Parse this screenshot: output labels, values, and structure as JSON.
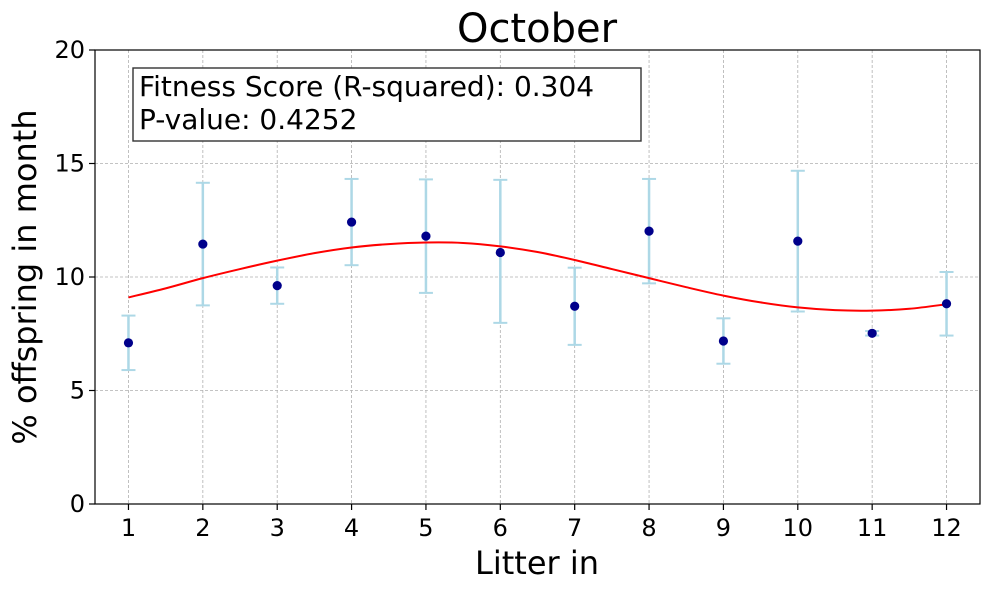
{
  "chart_data": {
    "type": "scatter",
    "title": "October",
    "xlabel": "Litter in",
    "ylabel": "% offspring in month",
    "xlim": [
      0.55,
      12.45
    ],
    "ylim": [
      0,
      20
    ],
    "x_ticks": [
      1,
      2,
      3,
      4,
      5,
      6,
      7,
      8,
      9,
      10,
      11,
      12
    ],
    "y_ticks": [
      0,
      5,
      10,
      15,
      20
    ],
    "grid": true,
    "annotations": [
      "Fitness Score (R-squared): 0.304",
      "P-value: 0.4252"
    ],
    "points": {
      "x": [
        1,
        2,
        3,
        4,
        5,
        6,
        7,
        8,
        9,
        10,
        11,
        12
      ],
      "y": [
        7.1,
        11.45,
        9.62,
        12.42,
        11.8,
        11.08,
        8.71,
        12.02,
        7.18,
        11.58,
        7.52,
        8.82
      ],
      "err_low": [
        1.2,
        2.7,
        0.8,
        1.9,
        2.5,
        3.1,
        1.7,
        2.3,
        1.0,
        3.1,
        0.1,
        1.4
      ],
      "err_high": [
        1.2,
        2.7,
        0.8,
        1.9,
        2.5,
        3.2,
        1.7,
        2.3,
        1.0,
        3.1,
        0.1,
        1.4
      ],
      "point_color": "#00008b",
      "error_color": "#add8e6"
    },
    "fit_curve": {
      "x": [
        1,
        1.5,
        2,
        2.5,
        3,
        3.5,
        4,
        4.5,
        5,
        5.5,
        6,
        6.5,
        7,
        7.5,
        8,
        8.5,
        9,
        9.5,
        10,
        10.5,
        11,
        11.5,
        12
      ],
      "y": [
        9.1,
        9.5,
        9.95,
        10.35,
        10.72,
        11.05,
        11.3,
        11.45,
        11.52,
        11.5,
        11.35,
        11.1,
        10.75,
        10.35,
        9.95,
        9.55,
        9.18,
        8.88,
        8.66,
        8.54,
        8.52,
        8.6,
        8.8
      ],
      "color": "#ff0000"
    }
  }
}
